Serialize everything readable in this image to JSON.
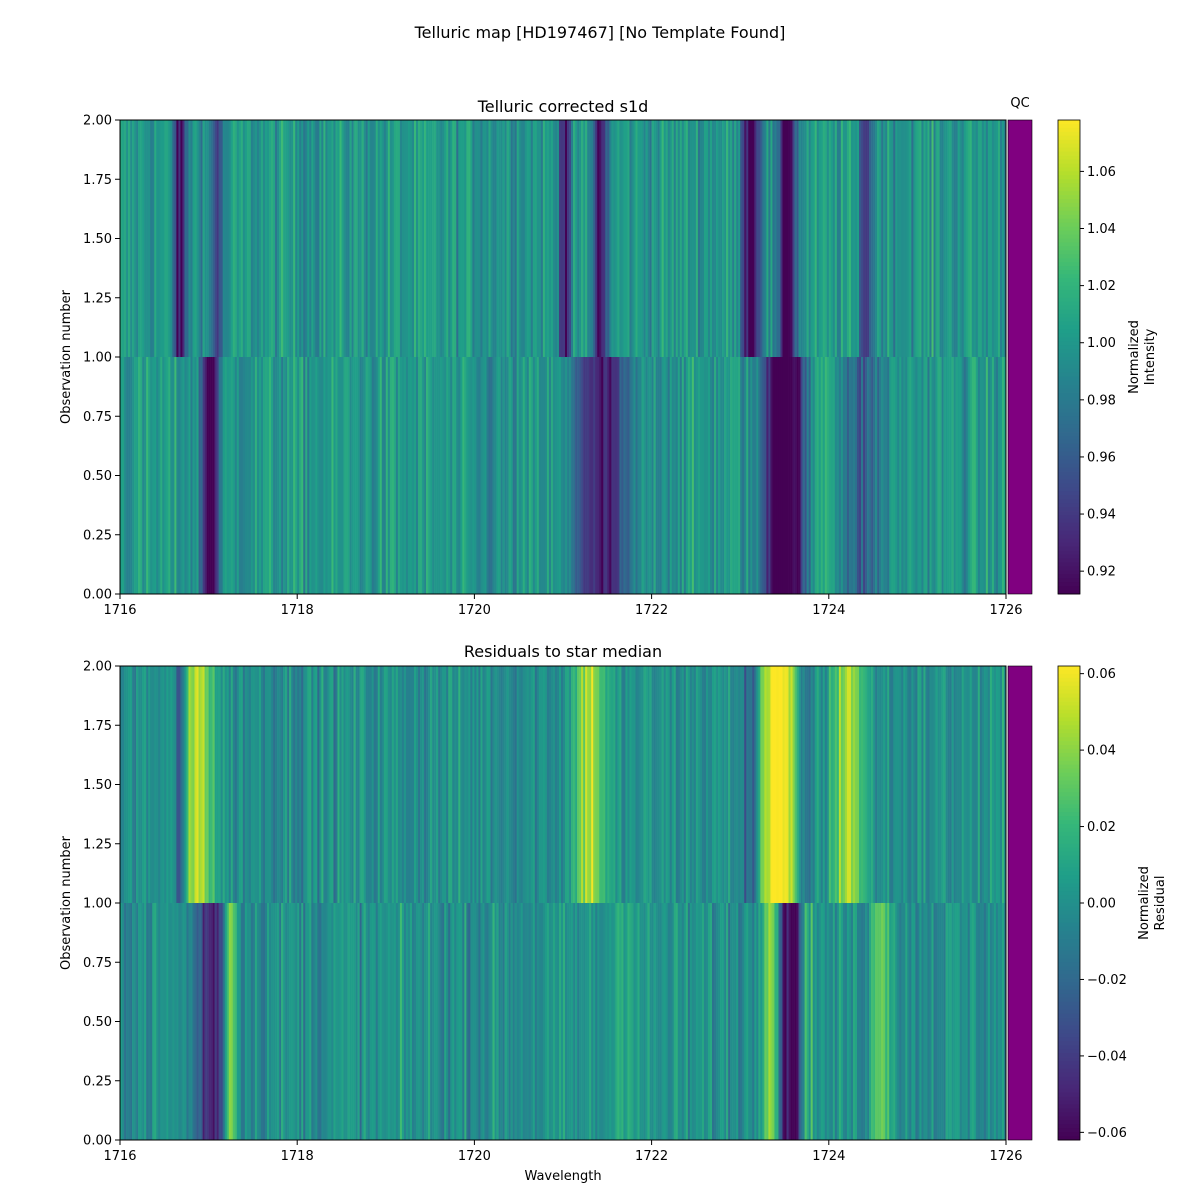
{
  "figure": {
    "suptitle": "Telluric map [HD197467] [No Template Found]"
  },
  "colormap": [
    "#440154",
    "#482878",
    "#3e4989",
    "#31688e",
    "#26828e",
    "#1f9e89",
    "#35b779",
    "#6ece58",
    "#b5de2b",
    "#fde725"
  ],
  "qc_color": "#800080",
  "chart_data": [
    {
      "type": "heatmap",
      "title": "Telluric corrected s1d",
      "qc_label": "QC",
      "xlabel": "",
      "ylabel": "Observation number",
      "xlim": [
        1716,
        1726
      ],
      "ylim": [
        0,
        2
      ],
      "x_ticks": [
        "1716",
        "1718",
        "1720",
        "1722",
        "1724",
        "1726"
      ],
      "y_ticks": [
        "0.00",
        "0.25",
        "0.50",
        "0.75",
        "1.00",
        "1.25",
        "1.50",
        "1.75",
        "2.00"
      ],
      "colorbar_label_lines": [
        "Normalized",
        "Intensity"
      ],
      "colorbar_range": [
        0.912,
        1.078
      ],
      "colorbar_ticks": [
        "0.92",
        "0.94",
        "0.96",
        "0.98",
        "1.00",
        "1.02",
        "1.04",
        "1.06"
      ],
      "baseline": 1.0,
      "noise": 0.022,
      "rows": [
        {
          "y_range": [
            1,
            2
          ],
          "features": [
            [
              1716.68,
              0.05,
              -0.09
            ],
            [
              1717.1,
              0.06,
              -0.05
            ],
            [
              1721.03,
              0.05,
              -0.07
            ],
            [
              1721.42,
              0.06,
              -0.08
            ],
            [
              1723.12,
              0.07,
              -0.09
            ],
            [
              1723.52,
              0.08,
              -0.09
            ],
            [
              1724.42,
              0.05,
              -0.06
            ]
          ]
        },
        {
          "y_range": [
            0,
            1
          ],
          "features": [
            [
              1717.02,
              0.07,
              -0.1
            ],
            [
              1721.45,
              0.22,
              -0.08
            ],
            [
              1723.52,
              0.18,
              -0.11
            ],
            [
              1723.95,
              0.15,
              0.03
            ],
            [
              1724.35,
              0.18,
              -0.04
            ],
            [
              1720.2,
              0.3,
              -0.01
            ]
          ]
        }
      ]
    },
    {
      "type": "heatmap",
      "title": "Residuals to star median",
      "xlabel": "Wavelength",
      "ylabel": "Observation number",
      "xlim": [
        1716,
        1726
      ],
      "ylim": [
        0,
        2
      ],
      "x_ticks": [
        "1716",
        "1718",
        "1720",
        "1722",
        "1724",
        "1726"
      ],
      "y_ticks": [
        "0.00",
        "0.25",
        "0.50",
        "0.75",
        "1.00",
        "1.25",
        "1.50",
        "1.75",
        "2.00"
      ],
      "colorbar_label_lines": [
        "Normalized",
        "Residual"
      ],
      "colorbar_range": [
        -0.062,
        0.062
      ],
      "colorbar_ticks": [
        "−0.06",
        "−0.04",
        "−0.02",
        "0.00",
        "0.02",
        "0.04",
        "0.06"
      ],
      "baseline": 0.0,
      "noise": 0.016,
      "rows": [
        {
          "y_range": [
            1,
            2
          ],
          "features": [
            [
              1716.9,
              0.12,
              0.05
            ],
            [
              1721.3,
              0.12,
              0.05
            ],
            [
              1723.42,
              0.16,
              0.07
            ],
            [
              1724.22,
              0.12,
              0.05
            ],
            [
              1716.68,
              0.05,
              -0.03
            ],
            [
              1723.12,
              0.06,
              -0.04
            ],
            [
              1723.72,
              0.06,
              -0.03
            ]
          ]
        },
        {
          "y_range": [
            0,
            1
          ],
          "features": [
            [
              1717.03,
              0.12,
              -0.05
            ],
            [
              1717.25,
              0.05,
              0.05
            ],
            [
              1723.35,
              0.08,
              0.07
            ],
            [
              1723.58,
              0.15,
              -0.07
            ],
            [
              1723.75,
              0.08,
              0.05
            ],
            [
              1724.6,
              0.08,
              0.04
            ],
            [
              1721.7,
              0.1,
              0.02
            ]
          ]
        }
      ]
    }
  ]
}
